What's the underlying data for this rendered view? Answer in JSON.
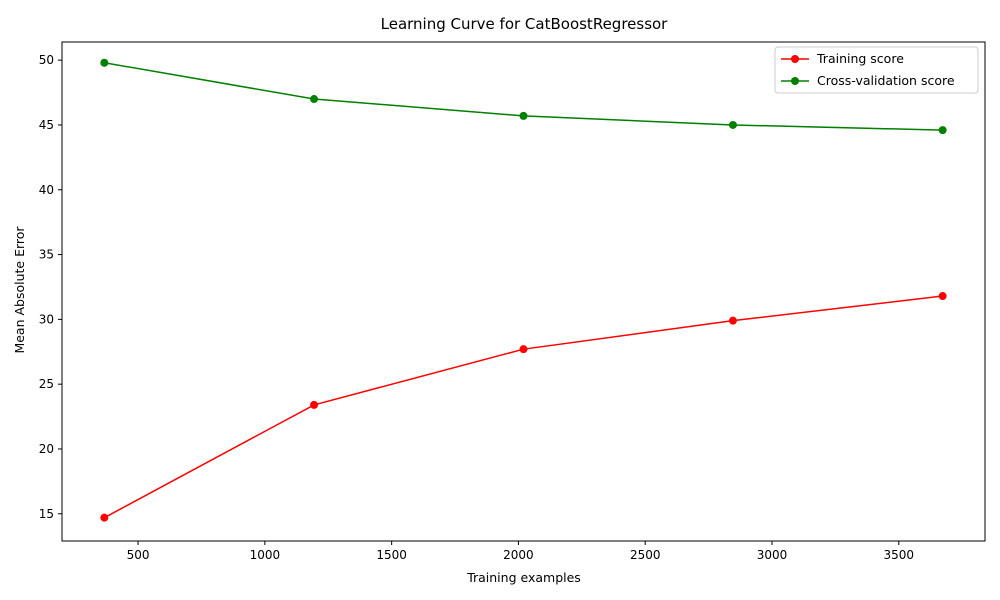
{
  "chart_data": {
    "type": "line",
    "title": "Learning Curve for CatBoostRegressor",
    "xlabel": "Training examples",
    "ylabel": "Mean Absolute Error",
    "xlim": [
      200,
      3840
    ],
    "ylim": [
      12.9,
      51.4
    ],
    "xticks": [
      500,
      1000,
      1500,
      2000,
      2500,
      3000,
      3500
    ],
    "yticks": [
      15,
      20,
      25,
      30,
      35,
      40,
      45,
      50
    ],
    "x": [
      367,
      1194,
      2020,
      2846,
      3673
    ],
    "series": [
      {
        "name": "Training score",
        "color": "#ff0000",
        "values": [
          14.7,
          23.4,
          27.7,
          29.9,
          31.8
        ]
      },
      {
        "name": "Cross-validation score",
        "color": "#008000",
        "values": [
          49.8,
          47.0,
          45.7,
          45.0,
          44.6
        ]
      }
    ],
    "legend_position": "top-right",
    "grid": false
  }
}
